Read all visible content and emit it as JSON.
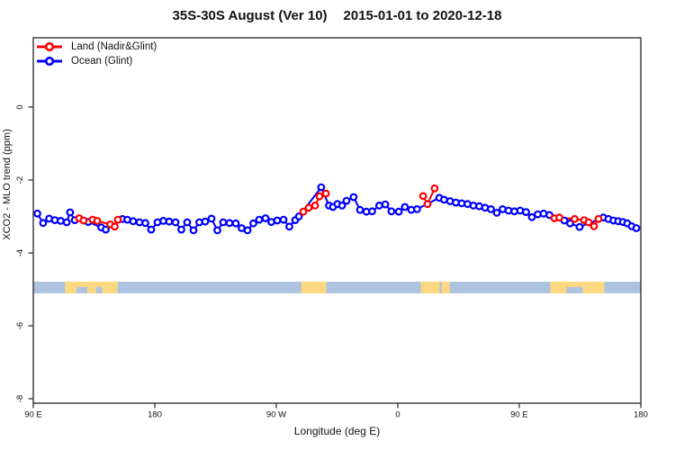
{
  "title": {
    "left": "35S-30S August (Ver 10)",
    "right": "2015-01-01 to 2020-12-18"
  },
  "legend": {
    "items": [
      {
        "label": "Land (Nadir&Glint)",
        "color": "#ff0000"
      },
      {
        "label": "Ocean (Glint)",
        "color": "#0000ff"
      }
    ]
  },
  "colors": {
    "land": "#ff0000",
    "ocean": "#0000ff",
    "frame": "#333333",
    "text": "#111111",
    "background": "#ffffff",
    "strip_ocean": "#adc3df",
    "strip_land": "#fcd880"
  },
  "chart_data": {
    "type": "line",
    "title": "35S-30S August (Ver 10)   2015-01-01 to 2020-12-18",
    "xlabel": "Longitude (deg E)",
    "ylabel": "XCO2 - MLO trend (ppm)",
    "grid": false,
    "legend_position": "top-left",
    "x_axis": {
      "range_deg": [
        90,
        540
      ],
      "ticks_deg": [
        90,
        180,
        270,
        360,
        450,
        540
      ],
      "tick_labels": [
        "90 E",
        "180",
        "90 W",
        "0",
        "90 E",
        "180"
      ],
      "note": "longitude axis wraps eastward: 90E -> 180 -> 90W -> 0 -> 90E -> 180"
    },
    "y_axis": {
      "range": [
        1.9,
        -8.1
      ],
      "ticks": [
        0,
        -2,
        -4,
        -6,
        -8
      ],
      "tick_labels": [
        "0",
        "-2",
        "-4",
        "-6",
        "-8"
      ]
    },
    "series": [
      {
        "name": "Land (Nadir&Glint)",
        "color": "#ff0000",
        "marker": "open-circle",
        "max_connect_gap_deg": 13,
        "points": [
          [
            124.0,
            -3.05
          ],
          [
            127.3,
            -3.11
          ],
          [
            134.0,
            -3.09
          ],
          [
            137.3,
            -3.12
          ],
          [
            147.0,
            -3.22
          ],
          [
            150.3,
            -3.28
          ],
          [
            152.7,
            -3.09
          ],
          [
            290.0,
            -2.87
          ],
          [
            294.0,
            -2.76
          ],
          [
            298.7,
            -2.7
          ],
          [
            302.0,
            -2.45
          ],
          [
            306.7,
            -2.37
          ],
          [
            378.7,
            -2.44
          ],
          [
            382.0,
            -2.66
          ],
          [
            387.3,
            -2.23
          ],
          [
            476.0,
            -3.05
          ],
          [
            479.7,
            -3.03
          ],
          [
            491.0,
            -3.07
          ],
          [
            498.0,
            -3.1
          ],
          [
            501.3,
            -3.16
          ],
          [
            505.3,
            -3.27
          ],
          [
            508.7,
            -3.07
          ]
        ]
      },
      {
        "name": "Ocean (Glint)",
        "color": "#0000ff",
        "marker": "open-circle",
        "max_connect_gap_deg": 18,
        "points": [
          [
            93.0,
            -2.92
          ],
          [
            97.3,
            -3.18
          ],
          [
            101.7,
            -3.06
          ],
          [
            106.0,
            -3.1
          ],
          [
            110.3,
            -3.12
          ],
          [
            114.7,
            -3.16
          ],
          [
            117.3,
            -2.89
          ],
          [
            120.7,
            -3.1
          ],
          [
            130.7,
            -3.15
          ],
          [
            140.3,
            -3.3
          ],
          [
            143.7,
            -3.36
          ],
          [
            156.0,
            -3.07
          ],
          [
            159.7,
            -3.09
          ],
          [
            164.0,
            -3.13
          ],
          [
            168.7,
            -3.16
          ],
          [
            173.0,
            -3.18
          ],
          [
            177.3,
            -3.36
          ],
          [
            182.0,
            -3.16
          ],
          [
            186.3,
            -3.12
          ],
          [
            190.7,
            -3.14
          ],
          [
            195.3,
            -3.16
          ],
          [
            199.7,
            -3.36
          ],
          [
            204.0,
            -3.16
          ],
          [
            208.7,
            -3.38
          ],
          [
            213.0,
            -3.16
          ],
          [
            217.3,
            -3.14
          ],
          [
            222.0,
            -3.06
          ],
          [
            226.3,
            -3.38
          ],
          [
            230.7,
            -3.16
          ],
          [
            235.3,
            -3.18
          ],
          [
            240.0,
            -3.19
          ],
          [
            244.3,
            -3.32
          ],
          [
            248.7,
            -3.38
          ],
          [
            253.0,
            -3.19
          ],
          [
            257.3,
            -3.09
          ],
          [
            262.0,
            -3.05
          ],
          [
            266.3,
            -3.15
          ],
          [
            270.7,
            -3.11
          ],
          [
            275.3,
            -3.09
          ],
          [
            279.7,
            -3.28
          ],
          [
            284.0,
            -3.1
          ],
          [
            286.7,
            -3.0
          ],
          [
            303.3,
            -2.2
          ],
          [
            309.0,
            -2.7
          ],
          [
            312.0,
            -2.74
          ],
          [
            315.3,
            -2.66
          ],
          [
            318.7,
            -2.7
          ],
          [
            322.0,
            -2.57
          ],
          [
            327.3,
            -2.47
          ],
          [
            332.0,
            -2.82
          ],
          [
            336.7,
            -2.87
          ],
          [
            341.0,
            -2.86
          ],
          [
            346.3,
            -2.7
          ],
          [
            350.7,
            -2.67
          ],
          [
            355.3,
            -2.86
          ],
          [
            360.7,
            -2.87
          ],
          [
            365.3,
            -2.74
          ],
          [
            370.0,
            -2.82
          ],
          [
            374.3,
            -2.8
          ],
          [
            390.7,
            -2.49
          ],
          [
            394.3,
            -2.54
          ],
          [
            398.7,
            -2.58
          ],
          [
            403.0,
            -2.62
          ],
          [
            407.3,
            -2.64
          ],
          [
            411.7,
            -2.66
          ],
          [
            416.0,
            -2.7
          ],
          [
            420.3,
            -2.72
          ],
          [
            424.7,
            -2.76
          ],
          [
            429.0,
            -2.8
          ],
          [
            433.3,
            -2.9
          ],
          [
            437.7,
            -2.8
          ],
          [
            442.0,
            -2.84
          ],
          [
            446.3,
            -2.86
          ],
          [
            450.7,
            -2.84
          ],
          [
            455.0,
            -2.88
          ],
          [
            459.3,
            -3.02
          ],
          [
            463.7,
            -2.94
          ],
          [
            468.0,
            -2.92
          ],
          [
            472.3,
            -2.96
          ],
          [
            483.3,
            -3.11
          ],
          [
            487.7,
            -3.19
          ],
          [
            494.7,
            -3.29
          ],
          [
            512.3,
            -3.03
          ],
          [
            516.0,
            -3.07
          ],
          [
            519.7,
            -3.11
          ],
          [
            523.3,
            -3.13
          ],
          [
            526.7,
            -3.15
          ],
          [
            530.0,
            -3.19
          ],
          [
            533.3,
            -3.27
          ],
          [
            536.7,
            -3.32
          ]
        ]
      }
    ],
    "land_ocean_strip": {
      "description": "latitude-band land/ocean map strip",
      "y_top": -4.79,
      "y_bottom": -5.11,
      "ocean_color": "#adc3df",
      "land_color": "#fcd880",
      "land_spans_deg": [
        [
          113.5,
          152.5
        ],
        [
          288.5,
          307
        ],
        [
          377,
          391
        ],
        [
          392.5,
          398.5
        ],
        [
          473,
          513
        ]
      ],
      "bay_spans_deg": [
        [
          122,
          130
        ],
        [
          136.5,
          141
        ],
        [
          485,
          497
        ]
      ]
    }
  }
}
